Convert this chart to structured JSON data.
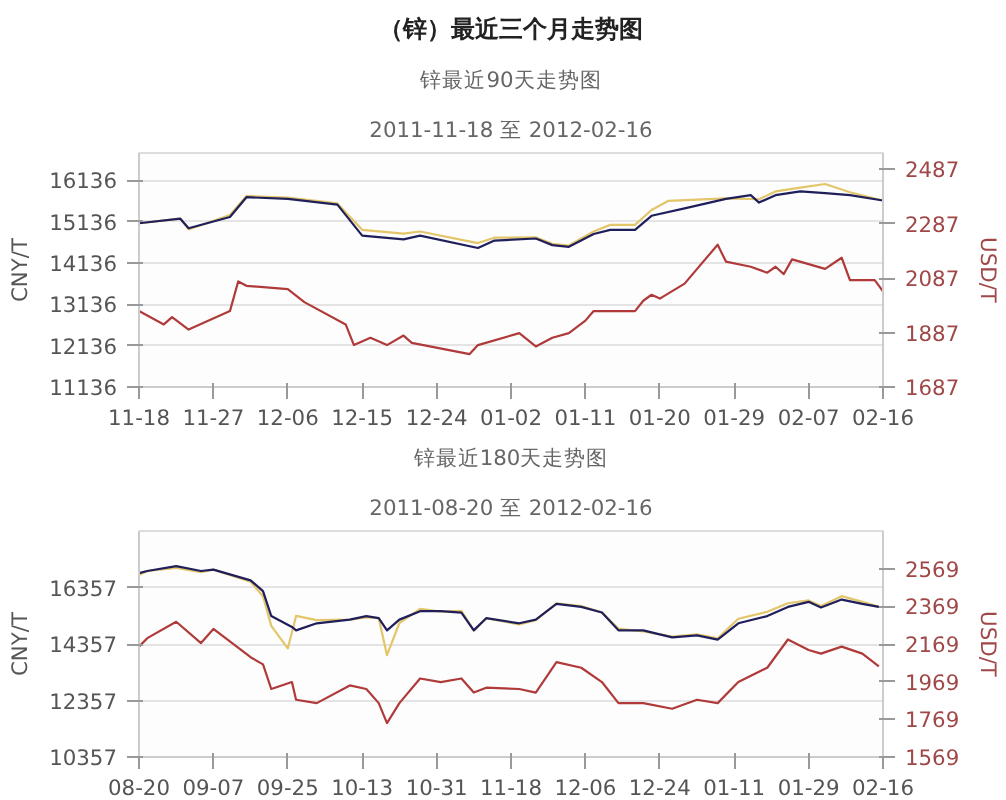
{
  "chart_data": [
    {
      "type": "line",
      "annotations": [
        "（锌）最近三个月走势图"
      ],
      "title": "锌最近90天走势图",
      "subtitle": "2011-11-18 至 2012-02-16",
      "ylabel": "CNY/T",
      "y2label": "USD/T",
      "xlim": [
        "2011-11-18",
        "2012-02-16"
      ],
      "ylim": [
        11136,
        16800
      ],
      "y2lim": [
        1687,
        2547
      ],
      "grid": "y",
      "xticks": [
        {
          "value": "2011-11-18",
          "label": "11-18"
        },
        {
          "value": "2011-11-27",
          "label": "11-27"
        },
        {
          "value": "2011-12-06",
          "label": "12-06"
        },
        {
          "value": "2011-12-15",
          "label": "12-15"
        },
        {
          "value": "2011-12-24",
          "label": "12-24"
        },
        {
          "value": "2012-01-02",
          "label": "01-02"
        },
        {
          "value": "2012-01-11",
          "label": "01-11"
        },
        {
          "value": "2012-01-20",
          "label": "01-20"
        },
        {
          "value": "2012-01-29",
          "label": "01-29"
        },
        {
          "value": "2012-02-07",
          "label": "02-07"
        },
        {
          "value": "2012-02-16",
          "label": "02-16"
        }
      ],
      "yticks": [
        11136,
        12136,
        13136,
        14136,
        15136,
        16136
      ],
      "y2ticks": [
        1687,
        1887,
        2087,
        2287,
        2487
      ],
      "series": [
        {
          "color": "#e3c56a",
          "x": [
            "2011-11-18",
            "2011-11-23",
            "2011-11-24",
            "2011-11-29",
            "2011-12-01",
            "2011-12-06",
            "2011-12-12",
            "2011-12-15",
            "2011-12-20",
            "2011-12-22",
            "2011-12-29",
            "2011-12-31",
            "2012-01-05",
            "2012-01-07",
            "2012-01-09",
            "2012-01-12",
            "2012-01-14",
            "2012-01-17",
            "2012-01-19",
            "2012-01-21",
            "2012-01-28",
            "2012-02-01",
            "2012-02-03",
            "2012-02-06",
            "2012-02-09",
            "2012-02-12",
            "2012-02-16"
          ],
          "values": [
            15100,
            15210,
            14950,
            15300,
            15760,
            15720,
            15580,
            14940,
            14850,
            14900,
            14620,
            14750,
            14760,
            14600,
            14560,
            14900,
            15060,
            15060,
            15420,
            15640,
            15700,
            15680,
            15870,
            15960,
            16050,
            15850,
            15650
          ]
        },
        {
          "color": "#1f1f5c",
          "x": [
            "2011-11-18",
            "2011-11-23",
            "2011-11-24",
            "2011-11-29",
            "2011-12-01",
            "2011-12-06",
            "2011-12-12",
            "2011-12-15",
            "2011-12-20",
            "2011-12-22",
            "2011-12-29",
            "2011-12-31",
            "2012-01-05",
            "2012-01-07",
            "2012-01-09",
            "2012-01-12",
            "2012-01-14",
            "2012-01-17",
            "2012-01-19",
            "2012-01-23",
            "2012-01-28",
            "2012-01-31",
            "2012-02-01",
            "2012-02-03",
            "2012-02-06",
            "2012-02-09",
            "2012-02-12",
            "2012-02-16"
          ],
          "values": [
            15100,
            15210,
            14980,
            15250,
            15730,
            15690,
            15550,
            14800,
            14710,
            14800,
            14500,
            14680,
            14730,
            14570,
            14530,
            14840,
            14940,
            14940,
            15280,
            15460,
            15690,
            15780,
            15600,
            15780,
            15870,
            15830,
            15780,
            15650
          ]
        },
        {
          "color": "#b03a3a",
          "axis": "y2",
          "x": [
            "2011-11-18",
            "2011-11-21",
            "2011-11-22",
            "2011-11-24",
            "2011-11-29",
            "2011-11-30",
            "2011-12-01",
            "2011-12-06",
            "2011-12-08",
            "2011-12-13",
            "2011-12-14",
            "2011-12-16",
            "2011-12-18",
            "2011-12-20",
            "2011-12-21",
            "2011-12-28",
            "2011-12-29",
            "2012-01-03",
            "2012-01-05",
            "2012-01-07",
            "2012-01-09",
            "2012-01-11",
            "2012-01-12",
            "2012-01-17",
            "2012-01-18",
            "2012-01-19",
            "2012-01-20",
            "2012-01-23",
            "2012-01-27",
            "2012-01-28",
            "2012-01-31",
            "2012-02-02",
            "2012-02-03",
            "2012-02-04",
            "2012-02-05",
            "2012-02-09",
            "2012-02-11",
            "2012-02-12",
            "2012-02-15",
            "2012-02-16"
          ],
          "values": [
            1966,
            1917,
            1944,
            1898,
            1966,
            2075,
            2059,
            2047,
            1999,
            1917,
            1841,
            1868,
            1841,
            1876,
            1849,
            1808,
            1841,
            1885,
            1836,
            1868,
            1885,
            1931,
            1966,
            1966,
            2004,
            2026,
            2012,
            2067,
            2210,
            2148,
            2129,
            2107,
            2129,
            2102,
            2156,
            2121,
            2162,
            2080,
            2080,
            2039
          ]
        }
      ]
    },
    {
      "type": "line",
      "title": "锌最近180天走势图",
      "subtitle": "2011-08-20 至 2012-02-16",
      "ylabel": "CNY/T",
      "y2label": "USD/T",
      "xlim": [
        "2011-08-20",
        "2012-02-16"
      ],
      "ylim": [
        10357,
        18357
      ],
      "y2lim": [
        1569,
        2769
      ],
      "grid": "y",
      "xticks": [
        {
          "value": "2011-08-20",
          "label": "08-20"
        },
        {
          "value": "2011-09-07",
          "label": "09-07"
        },
        {
          "value": "2011-09-25",
          "label": "09-25"
        },
        {
          "value": "2011-10-13",
          "label": "10-13"
        },
        {
          "value": "2011-10-31",
          "label": "10-31"
        },
        {
          "value": "2011-11-18",
          "label": "11-18"
        },
        {
          "value": "2011-12-06",
          "label": "12-06"
        },
        {
          "value": "2011-12-24",
          "label": "12-24"
        },
        {
          "value": "2012-01-11",
          "label": "01-11"
        },
        {
          "value": "2012-01-29",
          "label": "01-29"
        },
        {
          "value": "2012-02-16",
          "label": "02-16"
        }
      ],
      "yticks": [
        10357,
        12357,
        14357,
        16357
      ],
      "y2ticks": [
        1569,
        1769,
        1969,
        2169,
        2369,
        2569
      ],
      "series": [
        {
          "color": "#e3c56a",
          "x": [
            "2011-08-20",
            "2011-08-22",
            "2011-08-29",
            "2011-09-04",
            "2011-09-07",
            "2011-09-16",
            "2011-09-19",
            "2011-09-21",
            "2011-09-25",
            "2011-09-27",
            "2011-10-02",
            "2011-10-10",
            "2011-10-14",
            "2011-10-17",
            "2011-10-19",
            "2011-10-22",
            "2011-10-27",
            "2011-11-01",
            "2011-11-06",
            "2011-11-09",
            "2011-11-12",
            "2011-11-20",
            "2011-11-24",
            "2011-11-29",
            "2011-12-05",
            "2011-12-10",
            "2011-12-14",
            "2011-12-20",
            "2011-12-27",
            "2012-01-02",
            "2012-01-07",
            "2012-01-12",
            "2012-01-19",
            "2012-01-24",
            "2012-01-29",
            "2012-02-01",
            "2012-02-06",
            "2012-02-11",
            "2012-02-15"
          ],
          "values": [
            16800,
            16940,
            17050,
            16900,
            16990,
            16560,
            16050,
            15000,
            14200,
            15350,
            15200,
            15220,
            15300,
            15270,
            13960,
            15100,
            15600,
            15500,
            15530,
            14840,
            15270,
            15050,
            15200,
            15800,
            15700,
            15470,
            14900,
            14800,
            14620,
            14700,
            14560,
            15250,
            15500,
            15800,
            15900,
            15700,
            16050,
            15850,
            15670
          ]
        },
        {
          "color": "#1f1f5c",
          "x": [
            "2011-08-20",
            "2011-08-22",
            "2011-08-29",
            "2011-09-04",
            "2011-09-07",
            "2011-09-16",
            "2011-09-19",
            "2011-09-21",
            "2011-09-26",
            "2011-09-27",
            "2011-10-02",
            "2011-10-10",
            "2011-10-14",
            "2011-10-17",
            "2011-10-19",
            "2011-10-22",
            "2011-10-27",
            "2011-11-01",
            "2011-11-06",
            "2011-11-09",
            "2011-11-12",
            "2011-11-20",
            "2011-11-24",
            "2011-11-29",
            "2011-12-05",
            "2011-12-10",
            "2011-12-14",
            "2011-12-20",
            "2011-12-27",
            "2012-01-02",
            "2012-01-07",
            "2012-01-12",
            "2012-01-19",
            "2012-01-24",
            "2012-01-29",
            "2012-02-01",
            "2012-02-06",
            "2012-02-11",
            "2012-02-15"
          ],
          "values": [
            16863,
            16940,
            17116,
            16940,
            16990,
            16610,
            16230,
            15345,
            14960,
            14840,
            15090,
            15220,
            15345,
            15270,
            14840,
            15220,
            15520,
            15520,
            15470,
            14840,
            15270,
            15090,
            15220,
            15775,
            15670,
            15470,
            14840,
            14840,
            14590,
            14660,
            14510,
            15090,
            15345,
            15670,
            15850,
            15650,
            15930,
            15775,
            15670
          ]
        },
        {
          "color": "#b03a3a",
          "axis": "y2",
          "x": [
            "2011-08-20",
            "2011-08-22",
            "2011-08-29",
            "2011-09-04",
            "2011-09-07",
            "2011-09-16",
            "2011-09-19",
            "2011-09-21",
            "2011-09-26",
            "2011-09-27",
            "2011-10-02",
            "2011-10-10",
            "2011-10-14",
            "2011-10-17",
            "2011-10-19",
            "2011-10-22",
            "2011-10-27",
            "2011-11-01",
            "2011-11-06",
            "2011-11-09",
            "2011-11-12",
            "2011-11-20",
            "2011-11-24",
            "2011-11-29",
            "2011-12-05",
            "2011-12-10",
            "2011-12-14",
            "2011-12-20",
            "2011-12-27",
            "2012-01-02",
            "2012-01-07",
            "2012-01-12",
            "2012-01-19",
            "2012-01-24",
            "2012-01-29",
            "2012-02-01",
            "2012-02-06",
            "2012-02-11",
            "2012-02-15"
          ],
          "values": [
            2155,
            2200,
            2287,
            2174,
            2249,
            2099,
            2061,
            1930,
            1967,
            1873,
            1855,
            1949,
            1930,
            1855,
            1749,
            1855,
            1986,
            1967,
            1986,
            1911,
            1937,
            1930,
            1911,
            2073,
            2043,
            1967,
            1855,
            1855,
            1825,
            1873,
            1855,
            1967,
            2043,
            2193,
            2137,
            2118,
            2155,
            2118,
            2050
          ]
        }
      ]
    }
  ]
}
